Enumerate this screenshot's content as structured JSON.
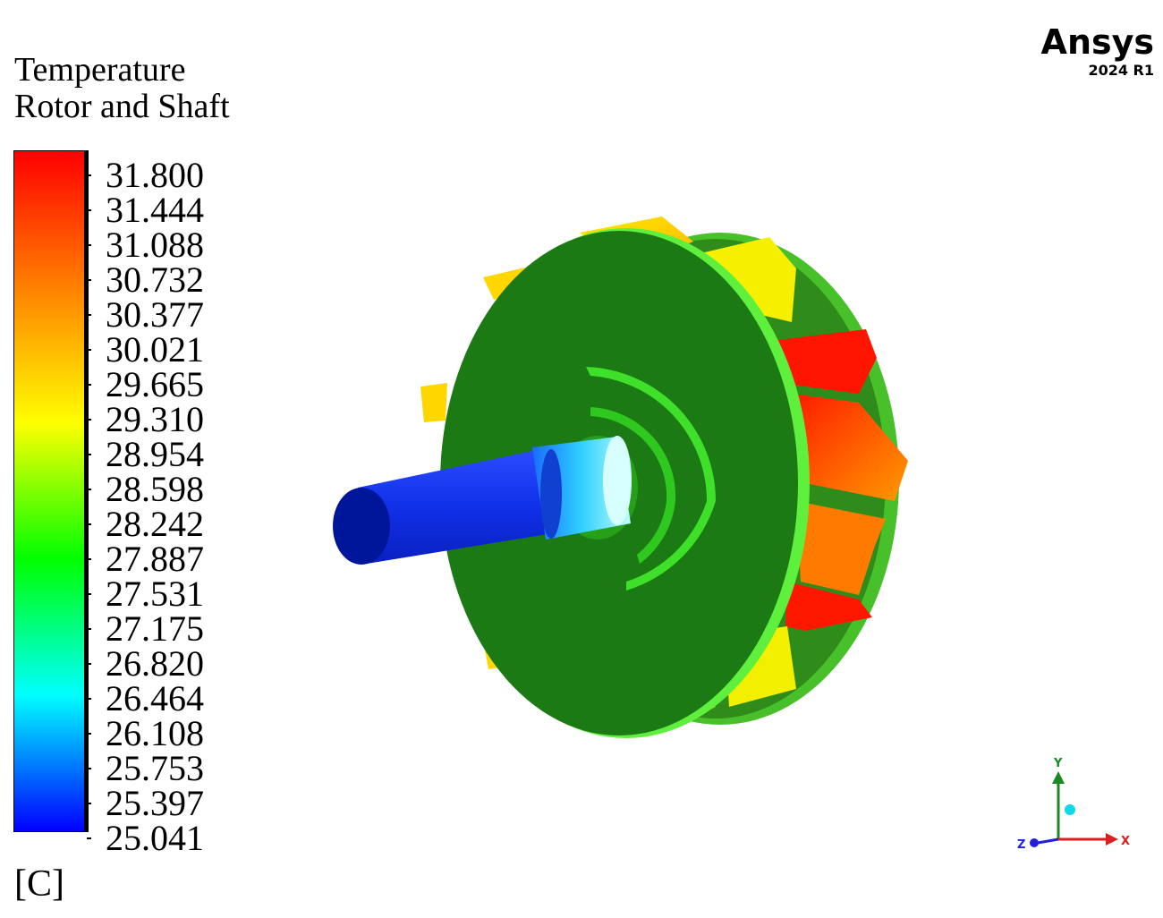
{
  "legend": {
    "title": "Temperature",
    "subtitle": "Rotor and Shaft",
    "unit": "[C]",
    "ticks": [
      "31.800",
      "31.444",
      "31.088",
      "30.732",
      "30.377",
      "30.021",
      "29.665",
      "29.310",
      "28.954",
      "28.598",
      "28.242",
      "27.887",
      "27.531",
      "27.175",
      "26.820",
      "26.464",
      "26.108",
      "25.753",
      "25.397",
      "25.041"
    ]
  },
  "branding": {
    "name": "Ansys",
    "version": "2024 R1"
  },
  "axes_triad": {
    "x": "X",
    "y": "Y",
    "z": "Z"
  },
  "colors": {
    "hot": "#ff0000",
    "warm": "#ff9900",
    "mid": "#ffff00",
    "face": "#1b7a13",
    "cool": "#00ffff",
    "cold": "#0000ff"
  }
}
